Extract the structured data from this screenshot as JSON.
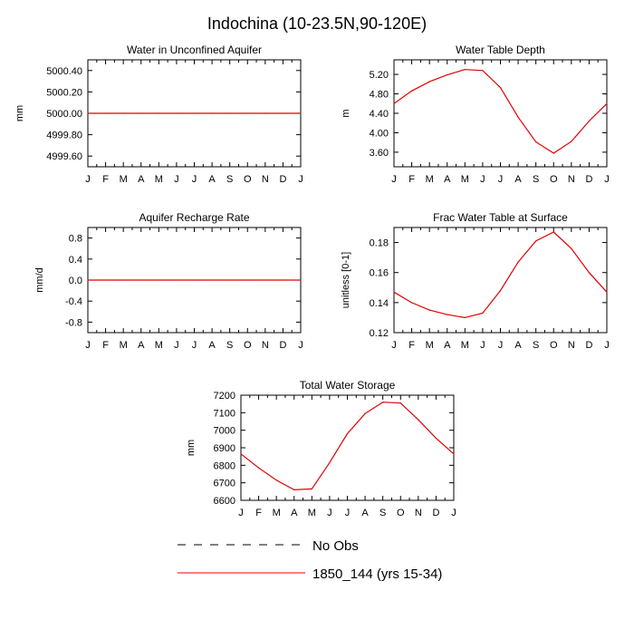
{
  "figure": {
    "title": "Indochina (10-23.5N,90-120E)",
    "legend": [
      {
        "label": "No Obs",
        "color": "#000000",
        "style": "dashed"
      },
      {
        "label": "1850_144 (yrs 15-34)",
        "color": "#e00000",
        "style": "solid"
      }
    ]
  },
  "chart_data": [
    {
      "type": "line",
      "title": "Water in Unconfined Aquifer",
      "xlabel": "",
      "ylabel": "mm",
      "categories": [
        "J",
        "F",
        "M",
        "A",
        "M",
        "J",
        "J",
        "A",
        "S",
        "O",
        "N",
        "D",
        "J"
      ],
      "ylim": [
        4999.5,
        5000.5
      ],
      "yticks": [
        4999.6,
        4999.8,
        5000.0,
        5000.2,
        5000.4
      ],
      "ytick_labels": [
        "4999.60",
        "4999.80",
        "5000.00",
        "5000.20",
        "5000.40"
      ],
      "series": [
        {
          "name": "1850_144 (yrs 15-34)",
          "color": "#e00000",
          "values": [
            5000,
            5000,
            5000,
            5000,
            5000,
            5000,
            5000,
            5000,
            5000,
            5000,
            5000,
            5000,
            5000
          ]
        }
      ]
    },
    {
      "type": "line",
      "title": "Water Table Depth",
      "xlabel": "",
      "ylabel": "m",
      "categories": [
        "J",
        "F",
        "M",
        "A",
        "M",
        "J",
        "J",
        "A",
        "S",
        "O",
        "N",
        "D",
        "J"
      ],
      "ylim": [
        3.3,
        5.5
      ],
      "yticks": [
        3.6,
        4.0,
        4.4,
        4.8,
        5.2
      ],
      "ytick_labels": [
        "3.60",
        "4.00",
        "4.40",
        "4.80",
        "5.20"
      ],
      "series": [
        {
          "name": "1850_144 (yrs 15-34)",
          "color": "#e00000",
          "values": [
            4.6,
            4.86,
            5.05,
            5.19,
            5.3,
            5.28,
            4.93,
            4.32,
            3.81,
            3.58,
            3.82,
            4.24,
            4.6
          ]
        }
      ]
    },
    {
      "type": "line",
      "title": "Aquifer Recharge Rate",
      "xlabel": "",
      "ylabel": "mm/d",
      "categories": [
        "J",
        "F",
        "M",
        "A",
        "M",
        "J",
        "J",
        "A",
        "S",
        "O",
        "N",
        "D",
        "J"
      ],
      "ylim": [
        -1.0,
        1.0
      ],
      "yticks": [
        -0.8,
        -0.4,
        0.0,
        0.4,
        0.8
      ],
      "ytick_labels": [
        "-0.8",
        "-0.4",
        "0.0",
        "0.4",
        "0.8"
      ],
      "series": [
        {
          "name": "1850_144 (yrs 15-34)",
          "color": "#e00000",
          "values": [
            0,
            0,
            0,
            0,
            0,
            0,
            0,
            0,
            0,
            0,
            0,
            0,
            0
          ]
        }
      ]
    },
    {
      "type": "line",
      "title": "Frac Water Table at Surface",
      "xlabel": "",
      "ylabel": "unitless [0-1]",
      "categories": [
        "J",
        "F",
        "M",
        "A",
        "M",
        "J",
        "J",
        "A",
        "S",
        "O",
        "N",
        "D",
        "J"
      ],
      "ylim": [
        0.12,
        0.19
      ],
      "yticks": [
        0.12,
        0.14,
        0.16,
        0.18
      ],
      "ytick_labels": [
        "0.12",
        "0.14",
        "0.16",
        "0.18"
      ],
      "series": [
        {
          "name": "1850_144 (yrs 15-34)",
          "color": "#e00000",
          "values": [
            0.147,
            0.14,
            0.135,
            0.132,
            0.13,
            0.133,
            0.148,
            0.167,
            0.181,
            0.187,
            0.176,
            0.16,
            0.147
          ]
        }
      ]
    },
    {
      "type": "line",
      "title": "Total Water Storage",
      "xlabel": "",
      "ylabel": "mm",
      "categories": [
        "J",
        "F",
        "M",
        "A",
        "M",
        "J",
        "J",
        "A",
        "S",
        "O",
        "N",
        "D",
        "J"
      ],
      "ylim": [
        6600,
        7200
      ],
      "yticks": [
        6600,
        6700,
        6800,
        6900,
        7000,
        7100,
        7200
      ],
      "ytick_labels": [
        "6600",
        "6700",
        "6800",
        "6900",
        "7000",
        "7100",
        "7200"
      ],
      "series": [
        {
          "name": "1850_144 (yrs 15-34)",
          "color": "#e00000",
          "values": [
            6865,
            6785,
            6715,
            6660,
            6665,
            6815,
            6980,
            7095,
            7160,
            7155,
            7060,
            6955,
            6865
          ]
        }
      ]
    }
  ]
}
